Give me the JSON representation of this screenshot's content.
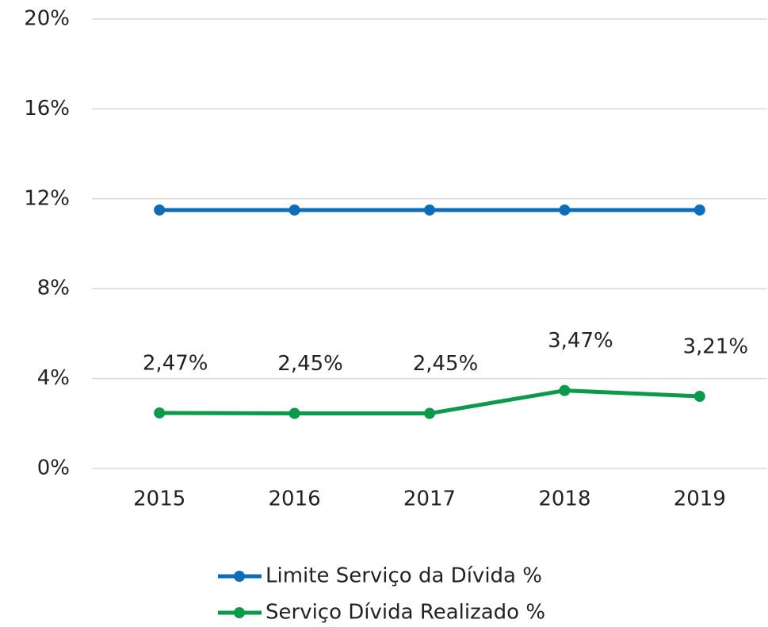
{
  "chart_data": {
    "type": "line",
    "categories": [
      "2015",
      "2016",
      "2017",
      "2018",
      "2019"
    ],
    "series": [
      {
        "name": "Limite Serviço da Dívida %",
        "color": "#0e6db8",
        "values": [
          11.5,
          11.5,
          11.5,
          11.5,
          11.5
        ]
      },
      {
        "name": "Serviço Dívida Realizado %",
        "color": "#0a9a4a",
        "values": [
          2.47,
          2.45,
          2.45,
          3.47,
          3.21
        ],
        "value_labels": [
          "2,47%",
          "2,45%",
          "2,45%",
          "3,47%",
          "3,21%"
        ]
      }
    ],
    "ylim": [
      0,
      20
    ],
    "yticks": [
      {
        "value": 0,
        "label": "0%"
      },
      {
        "value": 4,
        "label": "4%"
      },
      {
        "value": 8,
        "label": "8%"
      },
      {
        "value": 12,
        "label": "12%"
      },
      {
        "value": 16,
        "label": "16%"
      },
      {
        "value": 20,
        "label": "20%"
      }
    ],
    "grid": true,
    "legend": "bottom"
  }
}
